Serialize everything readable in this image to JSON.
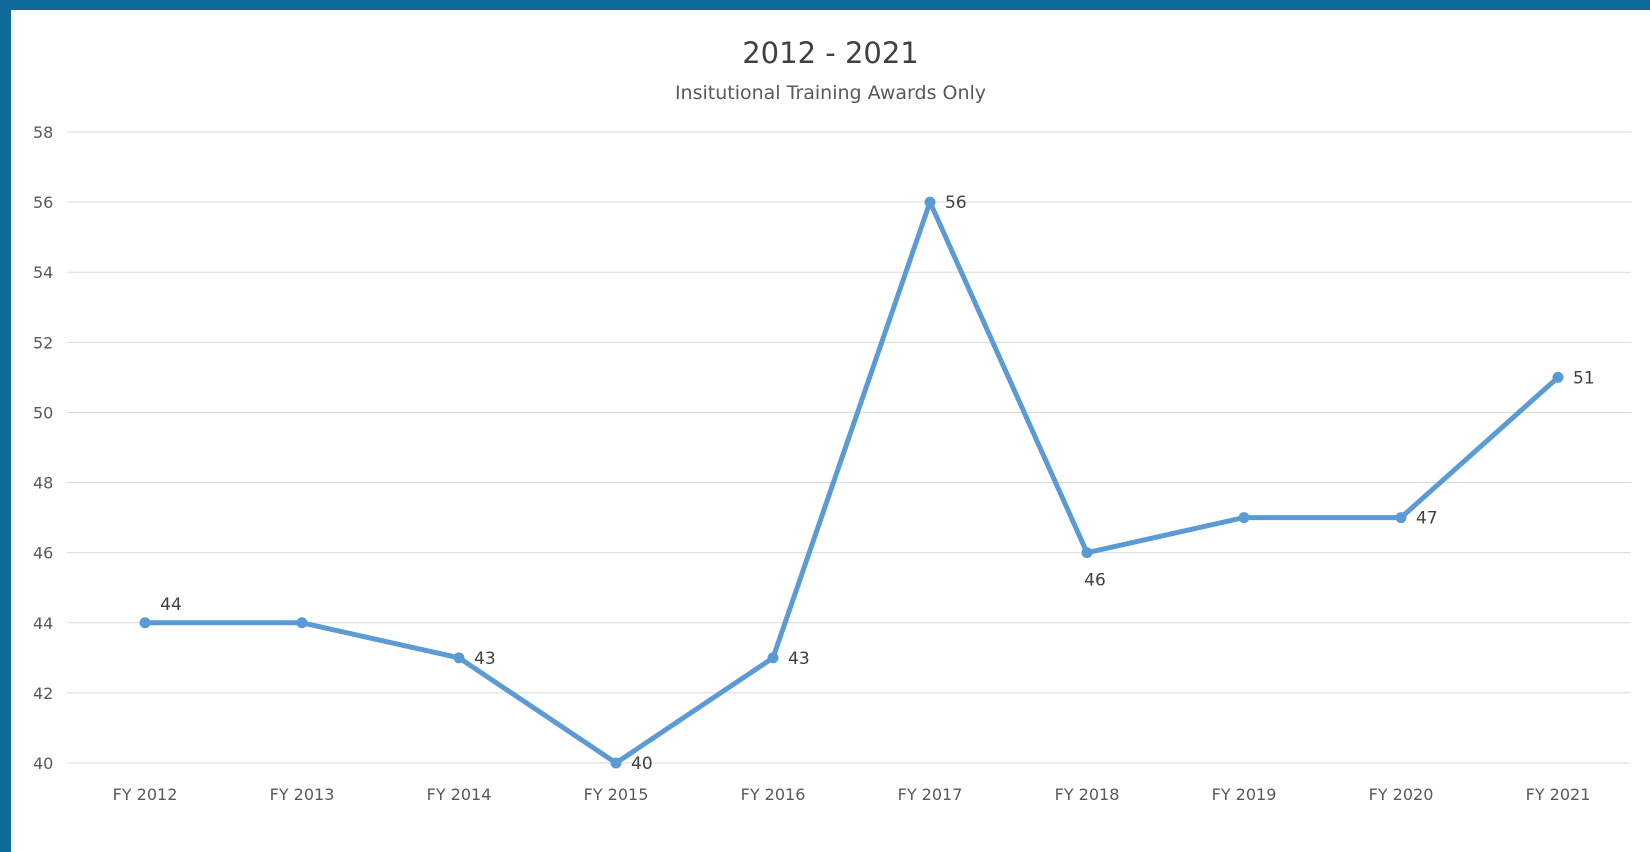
{
  "chart_data": {
    "type": "line",
    "title": "2012 - 2021",
    "subtitle": "Insitutional Training Awards Only",
    "xlabel": "",
    "ylabel": "",
    "categories": [
      "FY 2012",
      "FY 2013",
      "FY 2014",
      "FY 2015",
      "FY 2016",
      "FY 2017",
      "FY 2018",
      "FY 2019",
      "FY 2020",
      "FY 2021"
    ],
    "series": [
      {
        "values": [
          44,
          44,
          43,
          40,
          43,
          56,
          46,
          47,
          47,
          51
        ],
        "color": "#5b9bd5"
      }
    ],
    "data_labels": [
      {
        "category": "FY 2012",
        "text": "44",
        "position": "above"
      },
      {
        "category": "FY 2014",
        "text": "43",
        "position": "right"
      },
      {
        "category": "FY 2015",
        "text": "40",
        "position": "right"
      },
      {
        "category": "FY 2016",
        "text": "43",
        "position": "right"
      },
      {
        "category": "FY 2017",
        "text": "56",
        "position": "right"
      },
      {
        "category": "FY 2018",
        "text": "46",
        "position": "below"
      },
      {
        "category": "FY 2020",
        "text": "47",
        "position": "right"
      },
      {
        "category": "FY 2021",
        "text": "51",
        "position": "right"
      }
    ],
    "y_ticks": [
      "40",
      "42",
      "44",
      "46",
      "48",
      "50",
      "52",
      "54",
      "56",
      "58"
    ],
    "ylim": [
      40,
      58
    ],
    "grid": true,
    "legend": "none",
    "gridline_color": "#d9d9d9",
    "frame_color": "#0e6a96"
  }
}
